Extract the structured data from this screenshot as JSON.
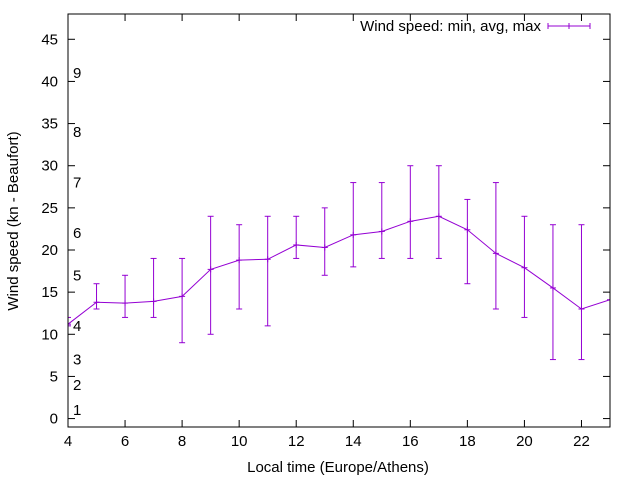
{
  "chart_data": {
    "type": "line",
    "xlabel": "Local time (Europe/Athens)",
    "ylabel": "Wind speed (kn - Beaufort)",
    "xlim": [
      4,
      23
    ],
    "ylim": [
      -1,
      48
    ],
    "xticks": [
      4,
      6,
      8,
      10,
      12,
      14,
      16,
      18,
      20,
      22
    ],
    "yticks": [
      0,
      5,
      10,
      15,
      20,
      25,
      30,
      35,
      40,
      45
    ],
    "grid": false,
    "legend_position": "top-right",
    "line_color": "#9400d3",
    "beaufort_labels": [
      {
        "label": "1",
        "y": 1
      },
      {
        "label": "2",
        "y": 4
      },
      {
        "label": "3",
        "y": 7
      },
      {
        "label": "4",
        "y": 11
      },
      {
        "label": "5",
        "y": 17
      },
      {
        "label": "6",
        "y": 22
      },
      {
        "label": "7",
        "y": 28
      },
      {
        "label": "8",
        "y": 34
      },
      {
        "label": "9",
        "y": 41
      }
    ],
    "series": [
      {
        "name": "Wind speed: min, avg, max",
        "points": [
          {
            "x": 4,
            "avg": 11.2,
            "min": 11,
            "max": 12
          },
          {
            "x": 5,
            "avg": 13.8,
            "min": 13,
            "max": 16
          },
          {
            "x": 6,
            "avg": 13.7,
            "min": 12,
            "max": 17
          },
          {
            "x": 7,
            "avg": 13.9,
            "min": 12,
            "max": 19
          },
          {
            "x": 8,
            "avg": 14.5,
            "min": 9,
            "max": 19
          },
          {
            "x": 9,
            "avg": 17.7,
            "min": 10,
            "max": 24
          },
          {
            "x": 10,
            "avg": 18.8,
            "min": 13,
            "max": 23
          },
          {
            "x": 11,
            "avg": 18.9,
            "min": 11,
            "max": 24
          },
          {
            "x": 12,
            "avg": 20.6,
            "min": 19,
            "max": 24
          },
          {
            "x": 13,
            "avg": 20.3,
            "min": 17,
            "max": 25
          },
          {
            "x": 14,
            "avg": 21.8,
            "min": 18,
            "max": 28
          },
          {
            "x": 15,
            "avg": 22.2,
            "min": 19,
            "max": 28
          },
          {
            "x": 16,
            "avg": 23.4,
            "min": 19,
            "max": 30
          },
          {
            "x": 17,
            "avg": 24.0,
            "min": 19,
            "max": 30
          },
          {
            "x": 18,
            "avg": 22.4,
            "min": 16,
            "max": 26
          },
          {
            "x": 19,
            "avg": 19.6,
            "min": 13,
            "max": 28
          },
          {
            "x": 20,
            "avg": 17.9,
            "min": 12,
            "max": 24
          },
          {
            "x": 21,
            "avg": 15.5,
            "min": 7,
            "max": 23
          },
          {
            "x": 22,
            "avg": 13.0,
            "min": 7,
            "max": 23
          },
          {
            "x": 23,
            "avg": 14.1,
            "min": 14,
            "max": 14
          }
        ]
      }
    ]
  }
}
